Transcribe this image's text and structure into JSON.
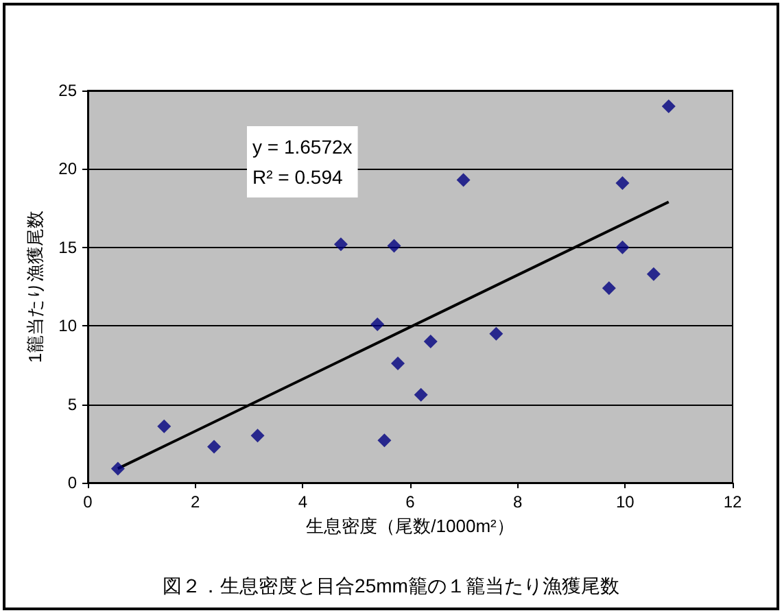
{
  "chart_data": {
    "type": "scatter",
    "title": "図２．生息密度と目合25mm籠の１籠当たり漁獲尾数",
    "xlabel": "生息密度（尾数/1000m²）",
    "ylabel": "1籠当たり漁獲尾数",
    "annotations": [
      "y = 1.6572x",
      "R² = 0.594"
    ],
    "xlim": [
      0,
      12
    ],
    "xticks": [
      0,
      2,
      4,
      6,
      8,
      10,
      12
    ],
    "ylim": [
      0,
      25
    ],
    "yticks": [
      0,
      5,
      10,
      15,
      20,
      25
    ],
    "grid": "y",
    "marker": "diamond",
    "series": [
      {
        "color": "#000080",
        "x": [
          0.56,
          1.42,
          2.35,
          3.16,
          4.71,
          5.7,
          5.39,
          5.52,
          5.77,
          6.2,
          6.38,
          6.99,
          7.6,
          9.7,
          9.95,
          9.95,
          10.53,
          10.81
        ],
        "values": [
          0.9,
          3.6,
          2.3,
          3.0,
          15.2,
          15.1,
          10.1,
          2.7,
          7.6,
          5.6,
          9.0,
          19.3,
          9.5,
          12.4,
          19.1,
          15.0,
          13.3,
          24.0
        ]
      },
      {
        "type": "line",
        "color": "#000000",
        "marker": "none",
        "x": [
          0.56,
          10.81
        ],
        "values": [
          0.9,
          17.9
        ]
      }
    ]
  }
}
